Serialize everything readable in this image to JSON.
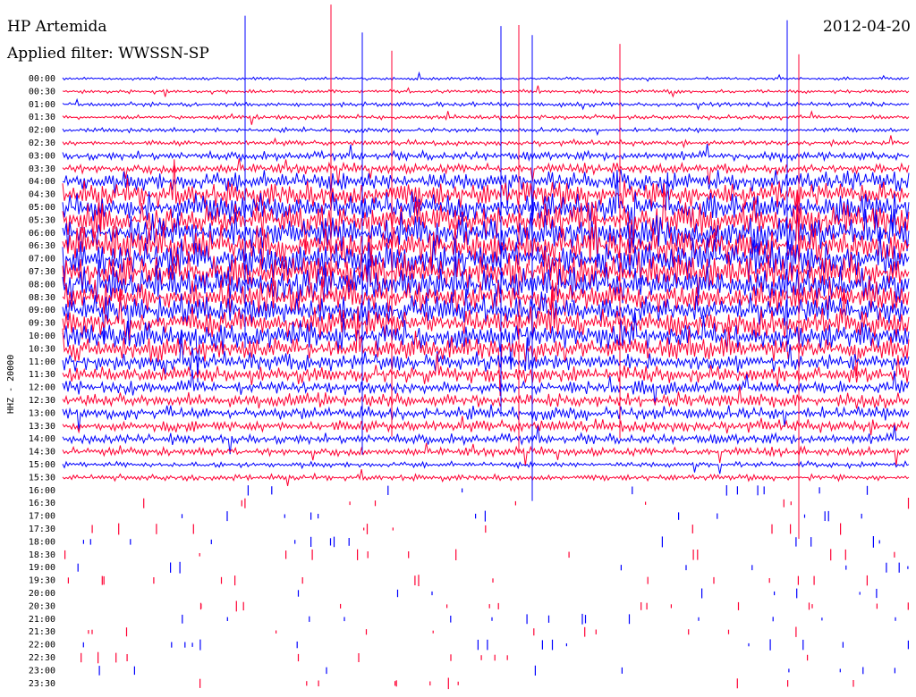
{
  "header": {
    "station": "HP Artemida",
    "date": "2012-04-20",
    "filter": "Applied filter: WWSSN-SP"
  },
  "chart_data": {
    "type": "line",
    "title": "HP Artemida",
    "date": "2012-04-20",
    "filter": "Applied filter: WWSSN-SP",
    "ylabel": "HHZ - 20000",
    "colors": [
      "#0000ff",
      "#ff0033"
    ],
    "row_labels": [
      "00:00",
      "00:30",
      "01:00",
      "01:30",
      "02:00",
      "02:30",
      "03:00",
      "03:30",
      "04:00",
      "04:30",
      "05:00",
      "05:30",
      "06:00",
      "06:30",
      "07:00",
      "07:30",
      "08:00",
      "08:30",
      "09:00",
      "09:30",
      "10:00",
      "10:30",
      "11:00",
      "11:30",
      "12:00",
      "12:30",
      "13:00",
      "13:30",
      "14:00",
      "14:30",
      "15:00",
      "15:30",
      "16:00",
      "16:30",
      "17:00",
      "17:30",
      "18:00",
      "18:30",
      "19:00",
      "19:30",
      "20:00",
      "20:30",
      "21:00",
      "21:30",
      "22:00",
      "22:30",
      "23:00",
      "23:30"
    ],
    "recorded_rows": 32,
    "relative_activity": [
      0.2,
      0.25,
      0.3,
      0.3,
      0.3,
      0.35,
      0.6,
      0.7,
      1.4,
      1.7,
      2.0,
      2.3,
      2.5,
      2.6,
      2.6,
      2.5,
      2.3,
      2.2,
      2.1,
      2.0,
      1.8,
      1.6,
      1.2,
      1.1,
      0.9,
      1.0,
      0.9,
      0.8,
      0.7,
      0.6,
      0.4,
      0.4
    ]
  }
}
